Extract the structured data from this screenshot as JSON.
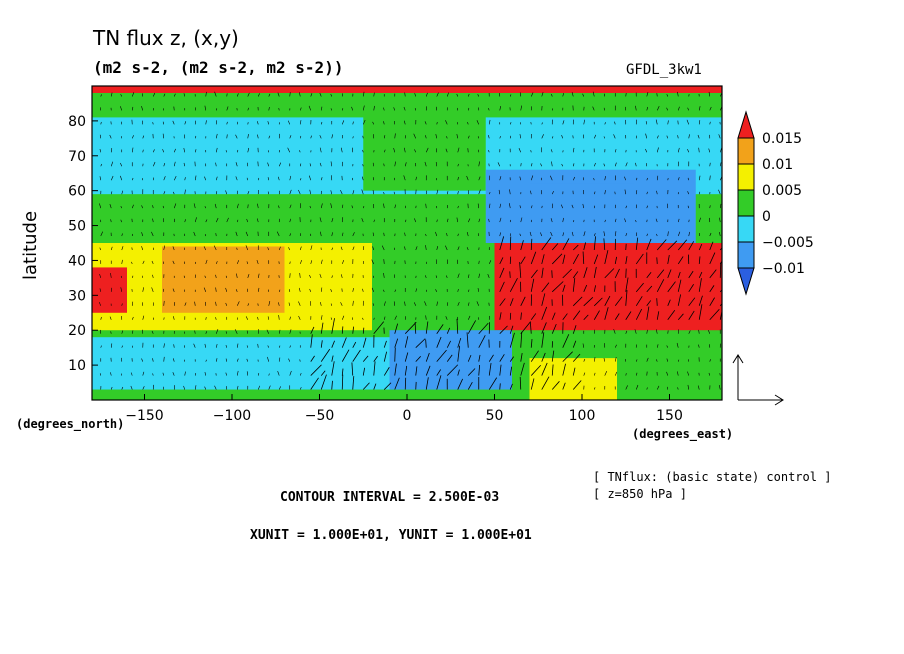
{
  "title": "TN flux z, (x,y)",
  "subtitle": "(m2 s-2, (m2 s-2, m2 s-2))",
  "model_label": "GFDL_3kw1",
  "ylabel": "latitude",
  "x_unit_label": "(degrees_east)",
  "y_unit_label": "(degrees_north)",
  "contour_interval_text": "CONTOUR INTERVAL = 2.500E-03",
  "vector_units_text": "XUNIT = 1.000E+01, YUNIT = 1.000E+01",
  "note_line1": "[ TNflux: (basic state) control ]",
  "note_line2": "[ z=850 hPa ]",
  "colors": {
    "blue_dark": "#2b5fe0",
    "blue": "#3f9bf2",
    "cyan": "#37d8f5",
    "green": "#33cc28",
    "yellow": "#f4f000",
    "orange": "#f2a21a",
    "red": "#ee2020"
  },
  "chart_data": {
    "type": "heatmap",
    "xlim": [
      -180,
      180
    ],
    "ylim": [
      0,
      90
    ],
    "xticks": [
      -150,
      -100,
      -50,
      0,
      50,
      100,
      150
    ],
    "yticks": [
      10,
      20,
      30,
      40,
      50,
      60,
      70,
      80
    ],
    "colorbar": {
      "labels": [
        "0.015",
        "0.01",
        "0.005",
        "0",
        "-0.005",
        "-0.01"
      ],
      "levels": [
        -0.01,
        -0.005,
        0,
        0.005,
        0.01,
        0.015
      ],
      "colors": [
        "#2b5fe0",
        "#3f9bf2",
        "#37d8f5",
        "#33cc28",
        "#f4f000",
        "#f2a21a",
        "#ee2020"
      ]
    },
    "regions": [
      {
        "lon": [
          -180,
          180
        ],
        "lat": [
          0,
          90
        ],
        "value": 0.001
      },
      {
        "lon": [
          -180,
          180
        ],
        "lat": [
          59,
          81
        ],
        "value": -0.003
      },
      {
        "lon": [
          -25,
          45
        ],
        "lat": [
          60,
          90
        ],
        "value": 0.002
      },
      {
        "lon": [
          45,
          165
        ],
        "lat": [
          45,
          66
        ],
        "value": -0.006
      },
      {
        "lon": [
          70,
          130
        ],
        "lat": [
          48,
          62
        ],
        "value": -0.009
      },
      {
        "lon": [
          -180,
          -20
        ],
        "lat": [
          20,
          45
        ],
        "value": 0.007
      },
      {
        "lon": [
          -140,
          -70
        ],
        "lat": [
          25,
          44
        ],
        "value": 0.011
      },
      {
        "lon": [
          -180,
          -160
        ],
        "lat": [
          25,
          38
        ],
        "value": 0.016
      },
      {
        "lon": [
          50,
          180
        ],
        "lat": [
          20,
          45
        ],
        "value": 0.016
      },
      {
        "lon": [
          -180,
          50
        ],
        "lat": [
          3,
          18
        ],
        "value": -0.003
      },
      {
        "lon": [
          -10,
          60
        ],
        "lat": [
          3,
          20
        ],
        "value": -0.008
      },
      {
        "lon": [
          70,
          120
        ],
        "lat": [
          0,
          12
        ],
        "value": 0.007
      },
      {
        "lon": [
          -180,
          180
        ],
        "lat": [
          88,
          90
        ],
        "value": 0.016
      }
    ]
  }
}
